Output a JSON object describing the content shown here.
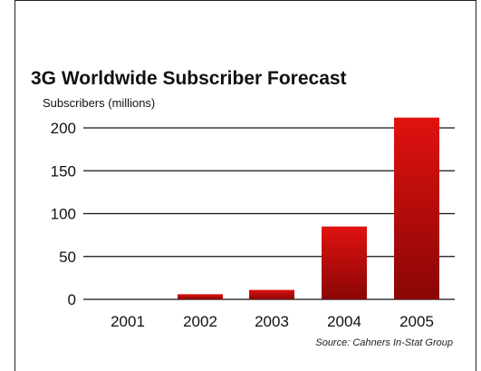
{
  "chart_data": {
    "type": "bar",
    "title": "3G Worldwide Subscriber Forecast",
    "ylabel": "Subscribers (millions)",
    "xlabel": "",
    "categories": [
      "2001",
      "2002",
      "2003",
      "2004",
      "2005"
    ],
    "values": [
      0,
      6,
      11,
      85,
      212
    ],
    "ylim": [
      0,
      200
    ],
    "yticks": [
      "0",
      "50",
      "100",
      "150",
      "200"
    ],
    "grid": true,
    "source": "Source: Cahners In-Stat Group",
    "bar_color_top": "#e0120f",
    "bar_color_bottom": "#8a0606"
  }
}
